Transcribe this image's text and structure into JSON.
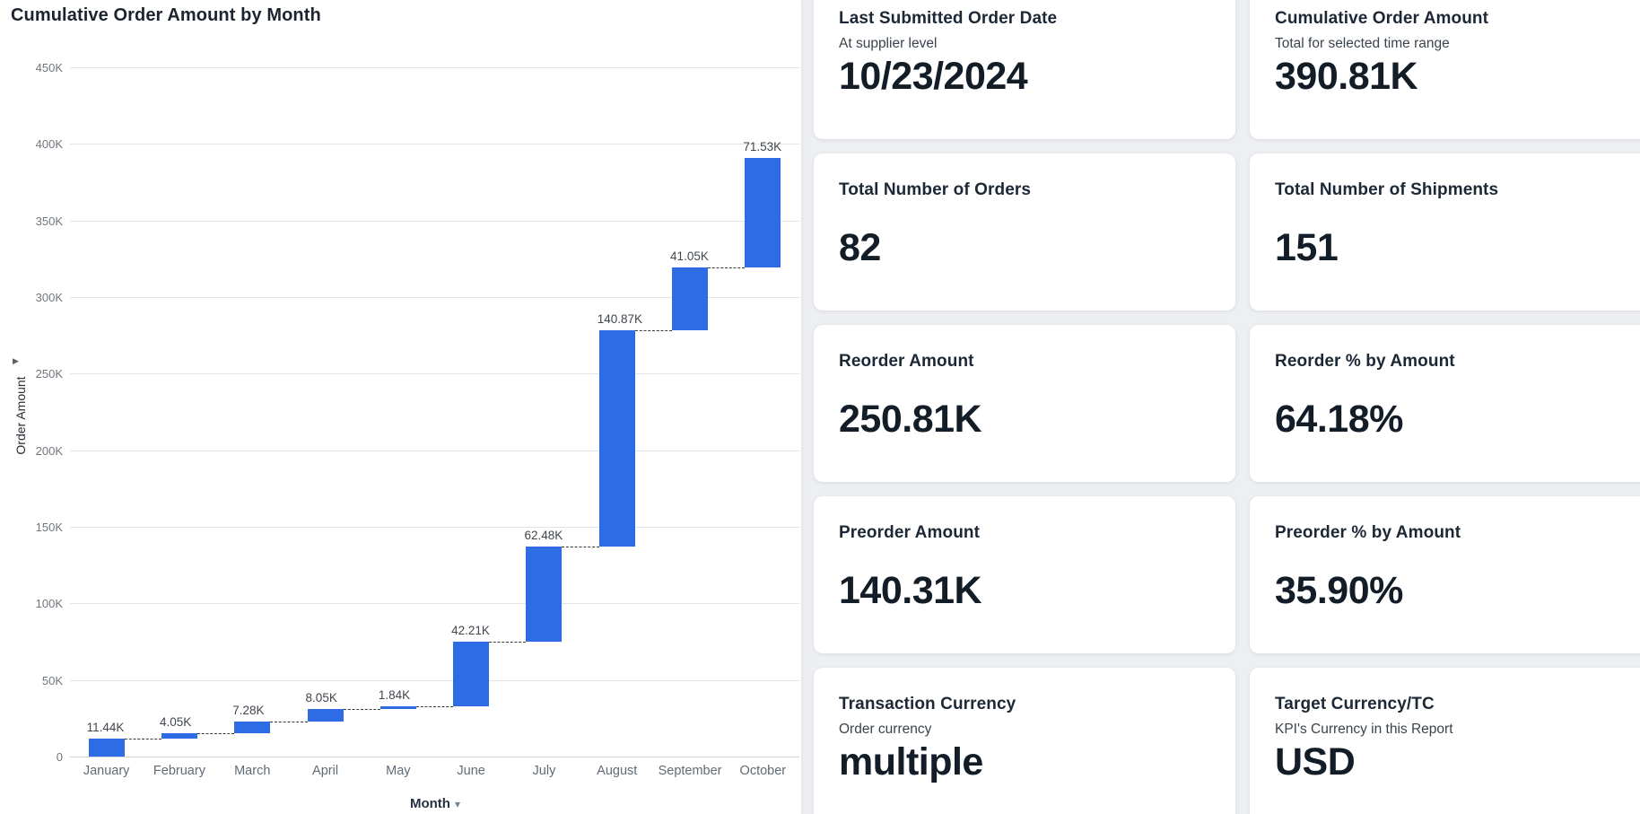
{
  "chart_data": {
    "type": "bar",
    "subtype": "waterfall",
    "title": "Cumulative Order Amount by Month",
    "xlabel": "Month",
    "ylabel": "Order Amount",
    "categories": [
      "January",
      "February",
      "March",
      "April",
      "May",
      "June",
      "July",
      "August",
      "September",
      "October"
    ],
    "values": [
      11440,
      4050,
      7280,
      8050,
      1840,
      42210,
      62480,
      140870,
      41050,
      71530
    ],
    "values_k": [
      11.44,
      4.05,
      7.28,
      8.05,
      1.84,
      42.21,
      62.48,
      140.87,
      41.05,
      71.53
    ],
    "value_labels": [
      "11.44K",
      "4.05K",
      "7.28K",
      "8.05K",
      "1.84K",
      "42.21K",
      "62.48K",
      "140.87K",
      "41.05K",
      "71.53K"
    ],
    "cumulative_k": [
      11.44,
      15.49,
      22.77,
      30.82,
      32.66,
      74.87,
      137.35,
      278.22,
      319.27,
      390.8
    ],
    "ylim": [
      0,
      450000
    ],
    "y_ticks": [
      {
        "value": 450,
        "label": "450K"
      },
      {
        "value": 400,
        "label": "400K"
      },
      {
        "value": 350,
        "label": "350K"
      },
      {
        "value": 300,
        "label": "300K"
      },
      {
        "value": 250,
        "label": "250K"
      },
      {
        "value": 200,
        "label": "200K"
      },
      {
        "value": 150,
        "label": "150K"
      },
      {
        "value": 100,
        "label": "100K"
      },
      {
        "value": 50,
        "label": "50K"
      },
      {
        "value": 0,
        "label": "0"
      }
    ],
    "grid": "horizontal",
    "legend": "none",
    "bar_color": "#2d6ce5"
  },
  "icons": {
    "axis_expand": "▶",
    "month_caret": "▾"
  },
  "cards": [
    {
      "title": "Last Submitted Order Date",
      "subtitle": "At supplier level",
      "value": "10/23/2024"
    },
    {
      "title": "Cumulative Order Amount",
      "subtitle": "Total for selected time range",
      "value": "390.81K"
    },
    {
      "title": "Total Number of Orders",
      "value": "82"
    },
    {
      "title": "Total Number of Shipments",
      "value": "151"
    },
    {
      "title": "Reorder Amount",
      "value": "250.81K"
    },
    {
      "title": "Reorder % by Amount",
      "value": "64.18%"
    },
    {
      "title": "Preorder Amount",
      "value": "140.31K"
    },
    {
      "title": "Preorder % by Amount",
      "value": "35.90%"
    },
    {
      "title": "Transaction Currency",
      "subtitle": "Order currency",
      "value": "multiple"
    },
    {
      "title": "Target Currency/TC",
      "subtitle": "KPI's Currency in this Report",
      "value": "USD"
    }
  ]
}
